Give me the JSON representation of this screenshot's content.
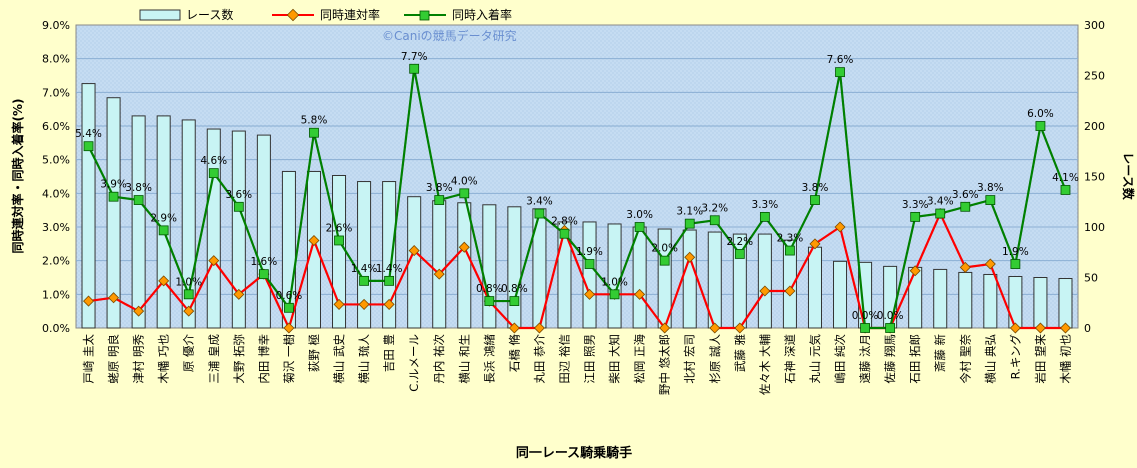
{
  "chart_data": {
    "type": "bar",
    "title": "",
    "watermark": "©Caniの競馬データ研究",
    "xlabel": "同一レース騎乗騎手",
    "ylabel_left": "同時連対率・同時入着率(%)",
    "ylabel_right": "レース数",
    "ylim_left": [
      0,
      9
    ],
    "ylim_right": [
      0,
      300
    ],
    "yticks_left": [
      "0.0%",
      "1.0%",
      "2.0%",
      "3.0%",
      "4.0%",
      "5.0%",
      "6.0%",
      "7.0%",
      "8.0%",
      "9.0%"
    ],
    "yticks_right": [
      "0",
      "50",
      "100",
      "150",
      "200",
      "250",
      "300"
    ],
    "grid": true,
    "legend_position": "top",
    "colors": {
      "background": "#ffffcc",
      "plot": "#c5dcf2",
      "bar_fill": "#c8f4f4",
      "bar_stroke": "#333333",
      "rentai": "#ff0000",
      "rentai_marker": "#ff9900",
      "nyuchaku": "#008000",
      "nyuchaku_marker": "#33cc33"
    },
    "categories": [
      "戸崎 圭太",
      "蛯原 明良",
      "津村 明秀",
      "木幡 巧也",
      "原 優介",
      "三浦 皇成",
      "大野 拓弥",
      "内田 博幸",
      "菊沢 一樹",
      "荻野 極",
      "横山 武史",
      "横山 琉人",
      "吉田 豊",
      "C.ルメール",
      "丹内 祐次",
      "横山 和生",
      "長浜 鴻緒",
      "石橋 脩",
      "丸田 恭介",
      "田辺 裕信",
      "江田 照男",
      "柴田 大知",
      "松岡 正海",
      "野中 悠太郎",
      "北村 宏司",
      "杉原 誠人",
      "武藤 雅",
      "佐々木 大輔",
      "石神 深道",
      "丸山 元気",
      "嶋田 純次",
      "遠藤 汰月",
      "佐藤 翔馬",
      "石田 拓郎",
      "斎藤 新",
      "今村 聖奈",
      "横山 典弘",
      "R.キング",
      "岩田 望来",
      "木幡 初也"
    ],
    "series": [
      {
        "name": "レース数",
        "axis": "right",
        "kind": "bar",
        "values": [
          242,
          228,
          210,
          210,
          206,
          197,
          195,
          191,
          155,
          155,
          151,
          145,
          145,
          130,
          126,
          124,
          122,
          120,
          118,
          105,
          105,
          103,
          100,
          98,
          97,
          95,
          93,
          93,
          87,
          80,
          66,
          65,
          61,
          60,
          58,
          55,
          53,
          51,
          50,
          49
        ]
      },
      {
        "name": "同時連対率",
        "axis": "left",
        "kind": "line",
        "values": [
          0.8,
          0.9,
          0.5,
          1.4,
          0.5,
          2.0,
          1.0,
          1.6,
          0.0,
          2.6,
          0.7,
          0.7,
          0.7,
          2.3,
          1.6,
          2.4,
          0.8,
          0.0,
          0.0,
          2.9,
          1.0,
          1.0,
          1.0,
          0.0,
          2.1,
          0.0,
          0.0,
          1.1,
          1.1,
          2.5,
          3.0,
          0.0,
          0.0,
          1.7,
          3.4,
          1.8,
          1.9,
          0.0,
          0.0,
          0.0
        ]
      },
      {
        "name": "同時入着率",
        "axis": "left",
        "kind": "line",
        "values": [
          5.4,
          3.9,
          3.8,
          2.9,
          1.0,
          4.6,
          3.6,
          1.6,
          0.6,
          5.8,
          2.6,
          1.4,
          1.4,
          7.7,
          3.8,
          4.0,
          0.8,
          0.8,
          3.4,
          2.8,
          1.9,
          1.0,
          3.0,
          2.0,
          3.1,
          3.2,
          2.2,
          3.3,
          2.3,
          3.8,
          7.6,
          0.0,
          0.0,
          3.3,
          3.4,
          3.6,
          3.8,
          1.9,
          6.0,
          4.1
        ]
      }
    ],
    "data_labels": [
      "5.4%",
      "3.9%",
      "3.8%",
      "2.9%",
      "1.0%",
      "4.6%",
      "3.6%",
      "1.6%",
      "0.6%",
      "5.8%",
      "2.6%",
      "1.4%",
      "1.4%",
      "7.7%",
      "3.8%",
      "4.0%",
      "0.8%",
      "0.8%",
      "3.4%",
      "2.8%",
      "1.9%",
      "1.0%",
      "3.0%",
      "2.0%",
      "3.1%",
      "3.2%",
      "2.2%",
      "3.3%",
      "2.3%",
      "3.8%",
      "7.6%",
      "0.0%",
      "0.0%",
      "3.3%",
      "3.4%",
      "3.6%",
      "3.8%",
      "1.9%",
      "6.0%",
      "4.1%"
    ]
  }
}
